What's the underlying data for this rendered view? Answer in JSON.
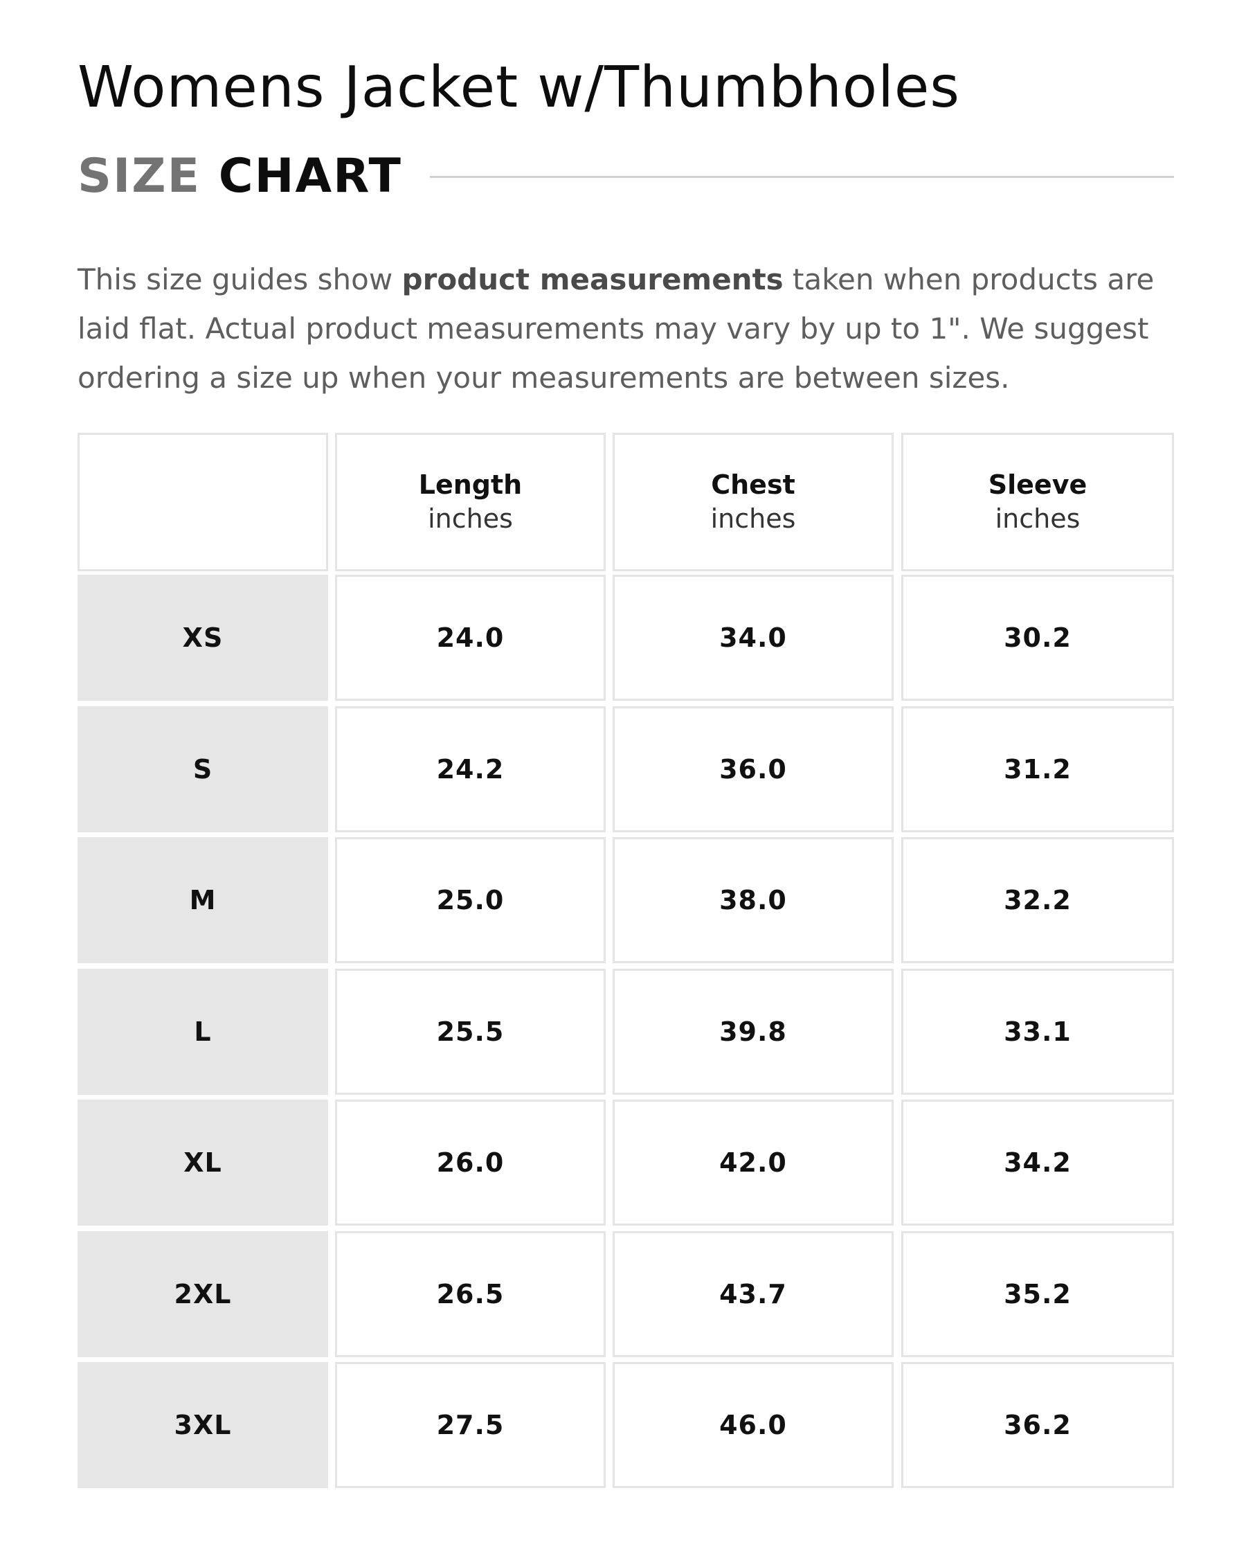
{
  "title": "Womens Jacket w/Thumbholes",
  "heading": {
    "word1": "SIZE",
    "word2": "CHART"
  },
  "intro": {
    "before": "This size guides show ",
    "bold": "product measurements",
    "after": " taken when products are laid flat. Actual product measurements may vary by up to 1\". We suggest ordering a size up when your measurements are between sizes."
  },
  "chart_data": {
    "type": "table",
    "columns": [
      {
        "name": "Length",
        "unit": "inches"
      },
      {
        "name": "Chest",
        "unit": "inches"
      },
      {
        "name": "Sleeve",
        "unit": "inches"
      }
    ],
    "rows": [
      {
        "size": "XS",
        "values": [
          "24.0",
          "34.0",
          "30.2"
        ]
      },
      {
        "size": "S",
        "values": [
          "24.2",
          "36.0",
          "31.2"
        ]
      },
      {
        "size": "M",
        "values": [
          "25.0",
          "38.0",
          "32.2"
        ]
      },
      {
        "size": "L",
        "values": [
          "25.5",
          "39.8",
          "33.1"
        ]
      },
      {
        "size": "XL",
        "values": [
          "26.0",
          "42.0",
          "34.2"
        ]
      },
      {
        "size": "2XL",
        "values": [
          "26.5",
          "43.7",
          "35.2"
        ]
      },
      {
        "size": "3XL",
        "values": [
          "27.5",
          "46.0",
          "36.2"
        ]
      }
    ]
  }
}
